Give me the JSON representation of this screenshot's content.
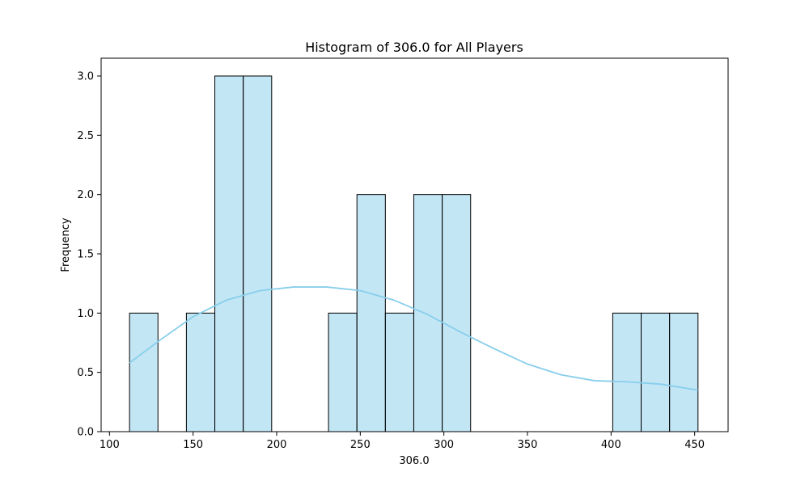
{
  "chart_data": {
    "type": "bar",
    "title": "Histogram of 306.0 for All Players",
    "xlabel": "306.0",
    "ylabel": "Frequency",
    "xlim": [
      95,
      470
    ],
    "ylim": [
      0,
      3.15
    ],
    "grid": false,
    "bin_edges": [
      112,
      129,
      146,
      163,
      180,
      197,
      214,
      231,
      248,
      265,
      282,
      299,
      316,
      333,
      350,
      367,
      384,
      401,
      418,
      435,
      452
    ],
    "values": [
      1,
      0,
      1,
      3,
      3,
      0,
      0,
      1,
      2,
      1,
      2,
      2,
      0,
      0,
      0,
      0,
      0,
      1,
      1,
      1
    ],
    "x_ticks": [
      100,
      150,
      200,
      250,
      300,
      350,
      400,
      450
    ],
    "y_ticks": [
      0.0,
      0.5,
      1.0,
      1.5,
      2.0,
      2.5,
      3.0
    ],
    "kde": {
      "x": [
        112,
        130,
        150,
        170,
        190,
        210,
        230,
        250,
        270,
        290,
        310,
        330,
        350,
        370,
        390,
        410,
        430,
        452
      ],
      "y": [
        0.58,
        0.77,
        0.97,
        1.11,
        1.19,
        1.22,
        1.22,
        1.19,
        1.11,
        0.99,
        0.84,
        0.7,
        0.57,
        0.48,
        0.43,
        0.42,
        0.4,
        0.35
      ]
    },
    "colors": {
      "bar_fill": "#87ceeb",
      "bar_edge": "#000000",
      "kde_line": "#87ceeb"
    }
  }
}
